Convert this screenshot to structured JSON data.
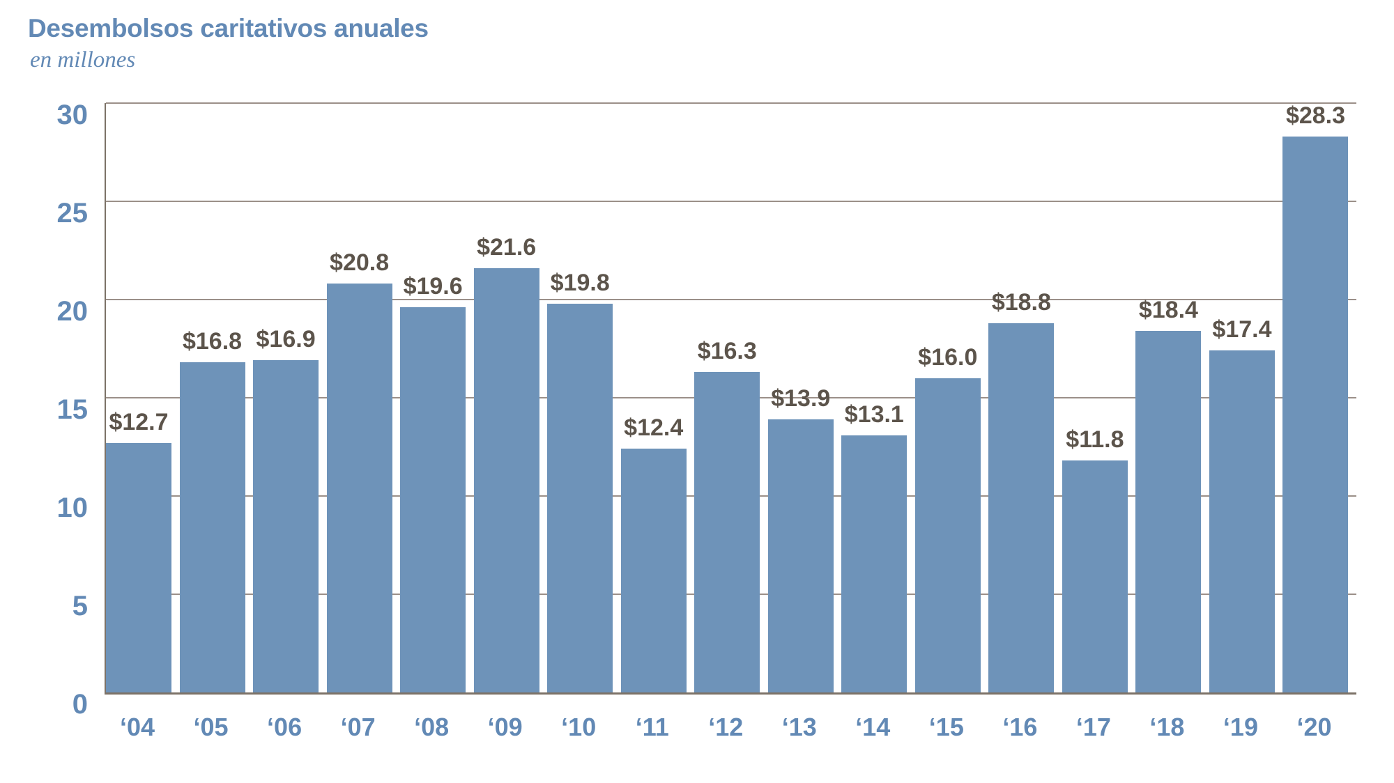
{
  "page": {
    "background": "#ffffff"
  },
  "header": {
    "title": "Desembolsos caritativos anuales",
    "subtitle": "en millones"
  },
  "colors": {
    "bar": "#6E93B9",
    "blue_text": "#6289B5",
    "value_text": "#5C544B",
    "gridline": "#9B9089",
    "axis": "#7C7267"
  },
  "chart_data": {
    "type": "bar",
    "title": "Desembolsos caritativos anuales",
    "subtitle": "en millones",
    "categories": [
      "‘04",
      "‘05",
      "‘06",
      "‘07",
      "‘08",
      "‘09",
      "‘10",
      "‘11",
      "‘12",
      "‘13",
      "‘14",
      "‘15",
      "‘16",
      "‘17",
      "‘18",
      "‘19",
      "‘20"
    ],
    "values": [
      12.7,
      16.8,
      16.9,
      20.8,
      19.6,
      21.6,
      19.8,
      12.4,
      16.3,
      13.9,
      13.1,
      16.0,
      18.8,
      11.8,
      18.4,
      17.4,
      28.3
    ],
    "value_labels": [
      "$12.7",
      "$16.8",
      "$16.9",
      "$20.8",
      "$19.6",
      "$21.6",
      "$19.8",
      "$12.4",
      "$16.3",
      "$13.9",
      "$13.1",
      "$16.0",
      "$18.8",
      "$11.8",
      "$18.4",
      "$17.4",
      "$28.3"
    ],
    "xlabel": "",
    "ylabel": "",
    "ylim": [
      0,
      30
    ],
    "yticks": [
      0,
      5,
      10,
      15,
      20,
      25,
      30
    ],
    "grid": "horizontal",
    "legend": "none"
  }
}
